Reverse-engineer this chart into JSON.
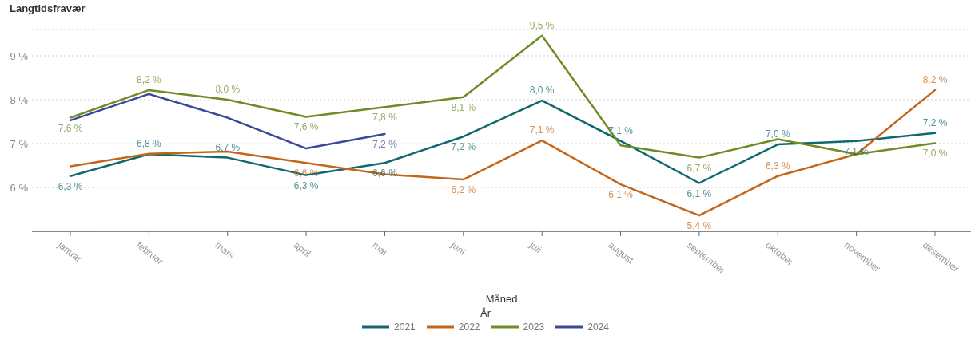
{
  "chart_data": {
    "type": "line",
    "ylabel": "Langtidsfravær",
    "xlabel": "Måned",
    "legend_title": "År",
    "categories": [
      "januar",
      "februar",
      "mars",
      "april",
      "mai",
      "juni",
      "juli",
      "august",
      "september",
      "oktober",
      "november",
      "desember"
    ],
    "series": [
      {
        "name": "2021",
        "color": "#0f696e",
        "values": [
          6.26,
          6.76,
          6.68,
          6.28,
          6.56,
          7.16,
          7.98,
          7.06,
          6.1,
          6.98,
          7.06,
          7.24
        ],
        "value_labels": [
          "6,3 %",
          "6,8 %",
          "6,7 %",
          "6,3 %",
          "6,6 %",
          "7,2 %",
          "8,0 %",
          "7,1 %",
          "6,1 %",
          "7,0 %",
          "7,1 %",
          "7,2 %"
        ]
      },
      {
        "name": "2022",
        "color": "#c4661a",
        "values": [
          6.48,
          6.77,
          6.82,
          6.56,
          6.3,
          6.18,
          7.07,
          6.07,
          5.36,
          6.26,
          6.76,
          8.22
        ],
        "value_labels": [
          null,
          null,
          null,
          "6,6 %",
          null,
          "6,2 %",
          "7,1 %",
          "6,1 %",
          "5,4 %",
          "6,3 %",
          null,
          "8,2 %"
        ]
      },
      {
        "name": "2023",
        "color": "#6e8b24",
        "values": [
          7.59,
          8.22,
          8.0,
          7.61,
          7.83,
          8.06,
          9.46,
          6.96,
          6.68,
          7.1,
          6.76,
          7.01
        ],
        "value_labels": [
          "7,6 %",
          "8,2 %",
          "8,0 %",
          "7,6 %",
          "7,8 %",
          "8,1 %",
          "9,5 %",
          null,
          "6,7 %",
          null,
          null,
          "7,0 %"
        ]
      },
      {
        "name": "2024",
        "color": "#3b4a96",
        "values": [
          7.53,
          8.13,
          7.59,
          6.89,
          7.22,
          null,
          null,
          null,
          null,
          null,
          null,
          null
        ],
        "value_labels": [
          null,
          null,
          null,
          null,
          "7,2 %",
          null,
          null,
          null,
          null,
          null,
          null,
          null
        ]
      }
    ],
    "ylim": [
      5,
      9.6
    ],
    "yticks": [
      {
        "value": 6,
        "label": "6 %"
      },
      {
        "value": 7,
        "label": "7 %"
      },
      {
        "value": 8,
        "label": "8 %"
      },
      {
        "value": 9,
        "label": "9 %"
      }
    ],
    "grid": "y",
    "legend": "bottom",
    "marker": "none",
    "line_style": "solid"
  }
}
